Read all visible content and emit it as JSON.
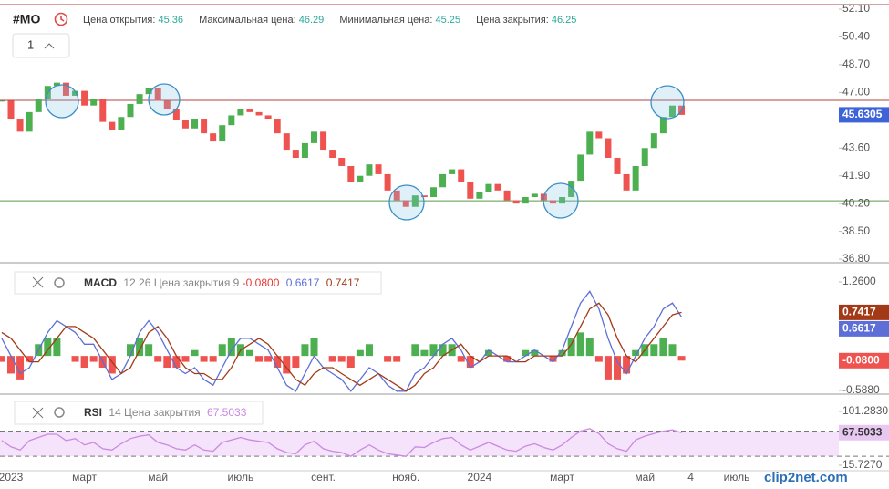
{
  "header": {
    "symbol": "#MO",
    "interval": "1",
    "fields": [
      {
        "label": "Цена открытия:",
        "value": 45.36
      },
      {
        "label": "Максимальная цена:",
        "value": 46.29
      },
      {
        "label": "Минимальная цена:",
        "value": 45.25
      },
      {
        "label": "Цена закрытия:",
        "value": 46.25
      }
    ],
    "watermark": "clip2net.com"
  },
  "chart_data": [
    {
      "type": "candlestick",
      "categories": [
        null,
        "2023",
        null,
        null,
        null,
        null,
        null,
        null,
        null,
        "март",
        null,
        null,
        null,
        null,
        null,
        null,
        null,
        "май",
        null,
        null,
        null,
        null,
        null,
        null,
        null,
        null,
        "июль",
        null,
        null,
        null,
        null,
        null,
        null,
        null,
        null,
        "сент.",
        null,
        null,
        null,
        null,
        null,
        null,
        null,
        null,
        "нояб.",
        null,
        null,
        null,
        null,
        null,
        null,
        null,
        "2024",
        null,
        null,
        null,
        null,
        null,
        null,
        null,
        null,
        "март",
        null,
        null,
        null,
        null,
        null,
        null,
        null,
        null,
        "май",
        null,
        null,
        null,
        null,
        "4",
        null,
        null,
        null,
        null,
        "июль"
      ],
      "values": [
        46.5,
        45.4,
        44.6,
        45.8,
        46.6,
        47.4,
        47.6,
        46.8,
        47.1,
        46.2,
        46.6,
        45.2,
        44.7,
        45.5,
        46.3,
        46.9,
        47.3,
        46.5,
        46.0,
        45.3,
        44.8,
        45.4,
        44.5,
        44.0,
        45.0,
        45.6,
        46.0,
        45.8,
        45.6,
        45.4,
        44.5,
        43.5,
        43.0,
        43.9,
        44.6,
        43.5,
        43.0,
        42.5,
        41.5,
        41.9,
        42.6,
        42.0,
        41.0,
        40.4,
        40.0,
        40.7,
        40.6,
        41.2,
        42.0,
        42.3,
        41.5,
        40.5,
        40.9,
        41.4,
        41.0,
        40.4,
        40.2,
        40.6,
        40.8,
        40.4,
        40.2,
        40.6,
        41.6,
        43.2,
        44.6,
        44.2,
        43.0,
        42.0,
        41.0,
        42.5,
        43.6,
        44.5,
        45.5,
        46.2,
        45.6305,
        null,
        null,
        null,
        null,
        null,
        null
      ],
      "up_color": "#4caf50",
      "down_color": "#ef5350",
      "label_color": "#3d63d8",
      "ylim": [
        36.58,
        52.66
      ],
      "yticks": [
        {
          "value": 52.1,
          "label": "52.10"
        },
        {
          "value": 50.4,
          "label": "50.40"
        },
        {
          "value": 48.7,
          "label": "48.70"
        },
        {
          "value": 47.0,
          "label": "47.00"
        },
        {
          "value": 43.6,
          "label": "43.60"
        },
        {
          "value": 41.9,
          "label": "41.90"
        },
        {
          "value": 40.2,
          "label": "40.20"
        },
        {
          "value": 38.5,
          "label": "38.50"
        },
        {
          "value": 36.8,
          "label": "36.80"
        }
      ],
      "levels": [
        {
          "value": 52.38,
          "color": "#b0413e"
        },
        {
          "value": 46.52,
          "color": "#b0413e"
        },
        {
          "value": 40.37,
          "color": "#5a9a4a"
        }
      ]
    },
    {
      "type": "macd",
      "title": "MACD",
      "params": "12 26 Цена закрытия 9",
      "histogram": {
        "up_color": "#4caf50",
        "down_color": "#ef5350",
        "last_value_label": "-0.0800",
        "values": [
          -0.1,
          -0.3,
          -0.4,
          -0.1,
          0.2,
          0.3,
          0.3,
          0.0,
          -0.1,
          -0.2,
          -0.1,
          -0.2,
          -0.3,
          0.0,
          0.2,
          0.3,
          0.2,
          -0.1,
          -0.2,
          -0.2,
          -0.1,
          0.1,
          -0.1,
          -0.1,
          0.2,
          0.3,
          0.2,
          0.1,
          -0.1,
          -0.1,
          -0.2,
          -0.3,
          -0.2,
          0.2,
          0.3,
          0.0,
          -0.1,
          -0.1,
          -0.2,
          0.1,
          0.2,
          0.0,
          -0.1,
          -0.1,
          0.0,
          0.2,
          0.1,
          0.2,
          0.2,
          0.2,
          -0.1,
          -0.2,
          0.0,
          0.1,
          0.0,
          -0.1,
          0.0,
          0.1,
          0.1,
          0.0,
          -0.1,
          0.1,
          0.3,
          0.4,
          0.3,
          -0.1,
          -0.4,
          -0.4,
          -0.3,
          0.1,
          0.2,
          0.2,
          0.3,
          0.2,
          -0.08,
          null,
          null,
          null,
          null,
          null,
          null
        ]
      },
      "macd": {
        "color": "#5d6fd6",
        "values": [
          0.3,
          0.0,
          -0.3,
          -0.2,
          0.1,
          0.4,
          0.6,
          0.5,
          0.4,
          0.2,
          0.2,
          -0.1,
          -0.4,
          -0.3,
          0.0,
          0.4,
          0.6,
          0.4,
          0.1,
          -0.2,
          -0.3,
          -0.2,
          -0.4,
          -0.5,
          -0.2,
          0.1,
          0.3,
          0.3,
          0.2,
          0.1,
          -0.2,
          -0.5,
          -0.6,
          -0.3,
          0.0,
          -0.2,
          -0.3,
          -0.4,
          -0.6,
          -0.4,
          -0.2,
          -0.3,
          -0.5,
          -0.6,
          -0.6,
          -0.3,
          -0.2,
          0.0,
          0.2,
          0.3,
          0.1,
          -0.2,
          -0.1,
          0.1,
          0.0,
          -0.1,
          -0.1,
          0.0,
          0.1,
          0.0,
          -0.1,
          0.1,
          0.5,
          0.9,
          1.1,
          0.8,
          0.3,
          -0.1,
          -0.3,
          0.0,
          0.3,
          0.5,
          0.8,
          0.9,
          0.6617,
          null,
          null,
          null,
          null,
          null,
          null
        ]
      },
      "signal": {
        "color": "#a33a17",
        "values": [
          0.4,
          0.3,
          0.1,
          -0.1,
          -0.1,
          0.1,
          0.3,
          0.5,
          0.5,
          0.4,
          0.3,
          0.1,
          -0.1,
          -0.3,
          -0.2,
          0.1,
          0.4,
          0.5,
          0.3,
          0.0,
          -0.2,
          -0.3,
          -0.3,
          -0.4,
          -0.4,
          -0.2,
          0.1,
          0.2,
          0.3,
          0.2,
          0.0,
          -0.2,
          -0.4,
          -0.5,
          -0.3,
          -0.2,
          -0.2,
          -0.3,
          -0.4,
          -0.5,
          -0.4,
          -0.3,
          -0.4,
          -0.5,
          -0.6,
          -0.5,
          -0.3,
          -0.2,
          0.0,
          0.1,
          0.2,
          0.0,
          -0.1,
          0.0,
          0.0,
          0.0,
          -0.1,
          -0.1,
          0.0,
          0.0,
          0.0,
          0.0,
          0.2,
          0.5,
          0.8,
          0.9,
          0.7,
          0.3,
          0.0,
          -0.1,
          0.1,
          0.3,
          0.5,
          0.7,
          0.7417,
          null,
          null,
          null,
          null,
          null,
          null
        ]
      },
      "ylim": [
        -0.619,
        1.431
      ],
      "yticks": [
        {
          "value": 1.26,
          "label": "1.2600"
        },
        {
          "value": -0.588,
          "label": "-0.5880"
        }
      ]
    },
    {
      "type": "rsi",
      "title": "RSI",
      "params": "14 Цена закрытия",
      "color": "#c98ae0",
      "band_color": "#f5e2fb",
      "label_color": "#e8c8f3",
      "values": [
        55,
        45,
        40,
        55,
        60,
        65,
        65,
        55,
        58,
        48,
        52,
        42,
        40,
        50,
        58,
        62,
        64,
        52,
        48,
        42,
        40,
        48,
        40,
        38,
        52,
        56,
        60,
        56,
        54,
        52,
        42,
        36,
        34,
        48,
        54,
        42,
        38,
        36,
        30,
        40,
        48,
        40,
        34,
        32,
        30,
        45,
        44,
        52,
        58,
        60,
        48,
        40,
        46,
        52,
        46,
        40,
        38,
        46,
        50,
        44,
        40,
        48,
        60,
        70,
        74,
        66,
        50,
        42,
        38,
        56,
        62,
        66,
        70,
        72,
        67.5033,
        null,
        null,
        null,
        null,
        null,
        null
      ],
      "bands": [
        30,
        70
      ],
      "ylim": [
        8.48,
        117.2
      ],
      "yticks": [
        {
          "value": 101.283,
          "label": "101.2830"
        },
        {
          "value": 15.727,
          "label": "15.7270"
        }
      ]
    }
  ]
}
